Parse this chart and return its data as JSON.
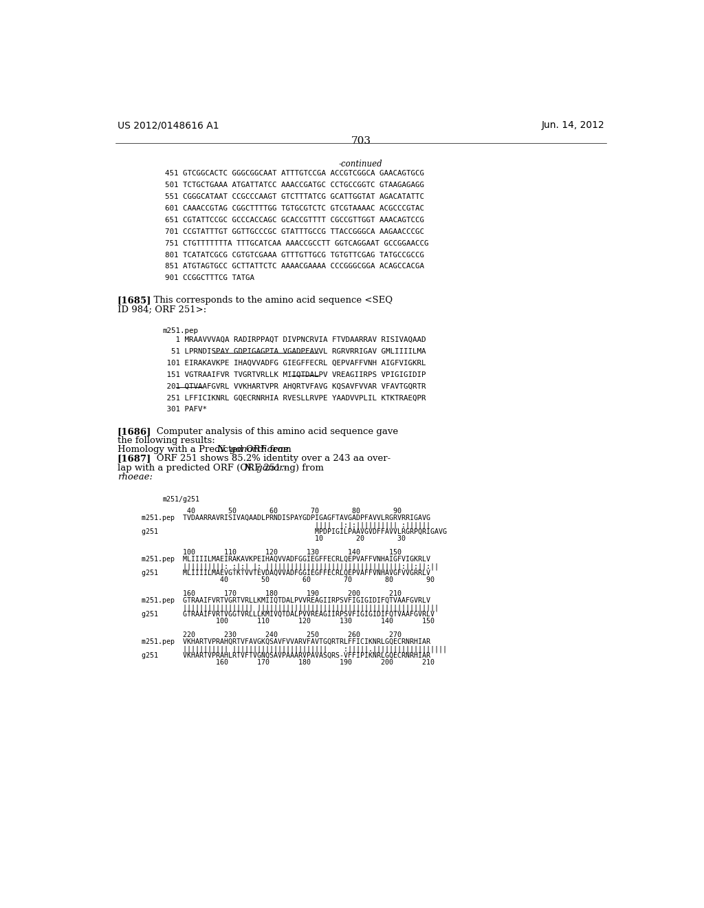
{
  "header_left": "US 2012/0148616 A1",
  "header_right": "Jun. 14, 2012",
  "page_number": "703",
  "continued": "-continued",
  "seq_lines": [
    "451 GTCGGCACTC GGGCGGCAAT ATTTGTCCGA ACCGTCGGCA GAACAGTGCG",
    "501 TCTGCTGAAA ATGATTATCC AAACCGATGC CCTGCCGGTC GTAAGAGAGG",
    "551 CGGGCATAAT CCGCCCAAGT GTCTTTATCG GCATTGGTAT AGACATATTC",
    "601 CAAACCGTAG CGGCTTTTGG TGTGCGTCTC GTCGTAAAAC ACGCCCGTAC",
    "651 CGTATTCCGC GCCCACCAGC GCACCGTTTT CGCCGTTGGT AAACAGTCCG",
    "701 CCGTATTTGT GGTTGCCCGC GTATTTGCCG TTACCGGGCA AAGAACCCGC",
    "751 CTGTTTTTTTA TTTGCATCAA AAACCGCCTT GGTCAGGAAT GCCGGAACCG",
    "801 TCATATCGCG CGTGTCGAAA GTTTGTTGCG TGTGTTCGAG TATGCCGCCG",
    "851 ATGTAGTGCC GCTTATTCTC AAAACGAAAA CCCGGGCGGA ACAGCCACGA",
    "901 CCGGCTTTCG TATGA"
  ],
  "pep_label": "m251.pep",
  "pep_lines": [
    "   1 MRAAVVVAQA RADIRPPAQT DIVPNCRVIA FTVDAARRAV RISIVAQAAD",
    "  51 LPRNDISPAY GDPIGAGPTA VGADPFAVVL RGRVRRIGAV GMLIIIILMA",
    " 101 EIRAKAVKPE IHAQVVADFG GIEGFFECRL QEPVAFFVNH AIGFVIGKRL",
    " 151 VGTRAAIFVR TVGRTVRLLK MIIQTDALPV VREAGIIRPS VPIGIGIDIP",
    " 201 QTVAAFGVRL VVKHARTVPR AHQRTVFAVG KQSAVFVVAR VFAVTGQRTR",
    " 251 LFFICIKNRL GQECRNRHIA RVESLLRVPE YAADVVPLIL KTKTRAEQPR",
    " 301 PAFV*"
  ],
  "align_label": "m251/g251",
  "align_block": [
    "           40        50        60        70        80        90",
    "m251.pep  TVDAARRAVRISIVAQAADLPRNDISPAYGDPIGAGFTAVGADPFAVVLRGRVRRIGAVG",
    "                                          ||||  |:|:|||||||||| :||||||",
    "g251                                      MPDPIGILPAAVGVDFFAVVLRGRPQRIGAVG",
    "                                          10        20        30",
    "",
    "          100       110       120       130       140       150",
    "m251.pep  MLIIIILMAEIRAKAVKPEIHAQVVADFGGIEGFFECRLQEPVAFFVNHAIGFVIGKRLV",
    "          ||||||||||: :|:| |: |||||||||||||||||||||||||||||||||:||:||:||",
    "g251      MLIIIILMAEVGTKTVVTEVDAQVVADFGGIEGFFECRLQEPVAFFVNHAVGFVVGRRLV",
    "                   40        50        60        70        80        90",
    "",
    "          160       170       180       190       200       210",
    "m251.pep  GTRAAIFVRTVGRTVRLLKMIIQTDALPVVREAGIIRPSVFIGIGIDIFQTVAAFGVRLV",
    "          ||||||||||||||||| ||||||||||||||||||||||||||||||||||||||||||||",
    "g251      GTRAAIFVRTVGGTVRLLLKMIVQTDALPVVREAGIIRPSVFIGIGIDIFQTVAAFGVRLV",
    "                  100       110       120       130       140       150",
    "",
    "          220       230       240       250       260       270",
    "m251.pep  VKHARTVPRAHQRTVFAVGKQSAVFVVARVFAVTGQRTRLFFICIKNRLGQECRNRHIAR",
    "          ||||||||||| |||||||||||||||||||||||    :|||||.||||||||||||||||||",
    "g251      VKHARTVPRAHLRTVFTVGNQSAVPAAARVPAVASQRS-VFFIPIKNRLGQECRNRHIAR",
    "                  160       170       180       190       200       210"
  ]
}
